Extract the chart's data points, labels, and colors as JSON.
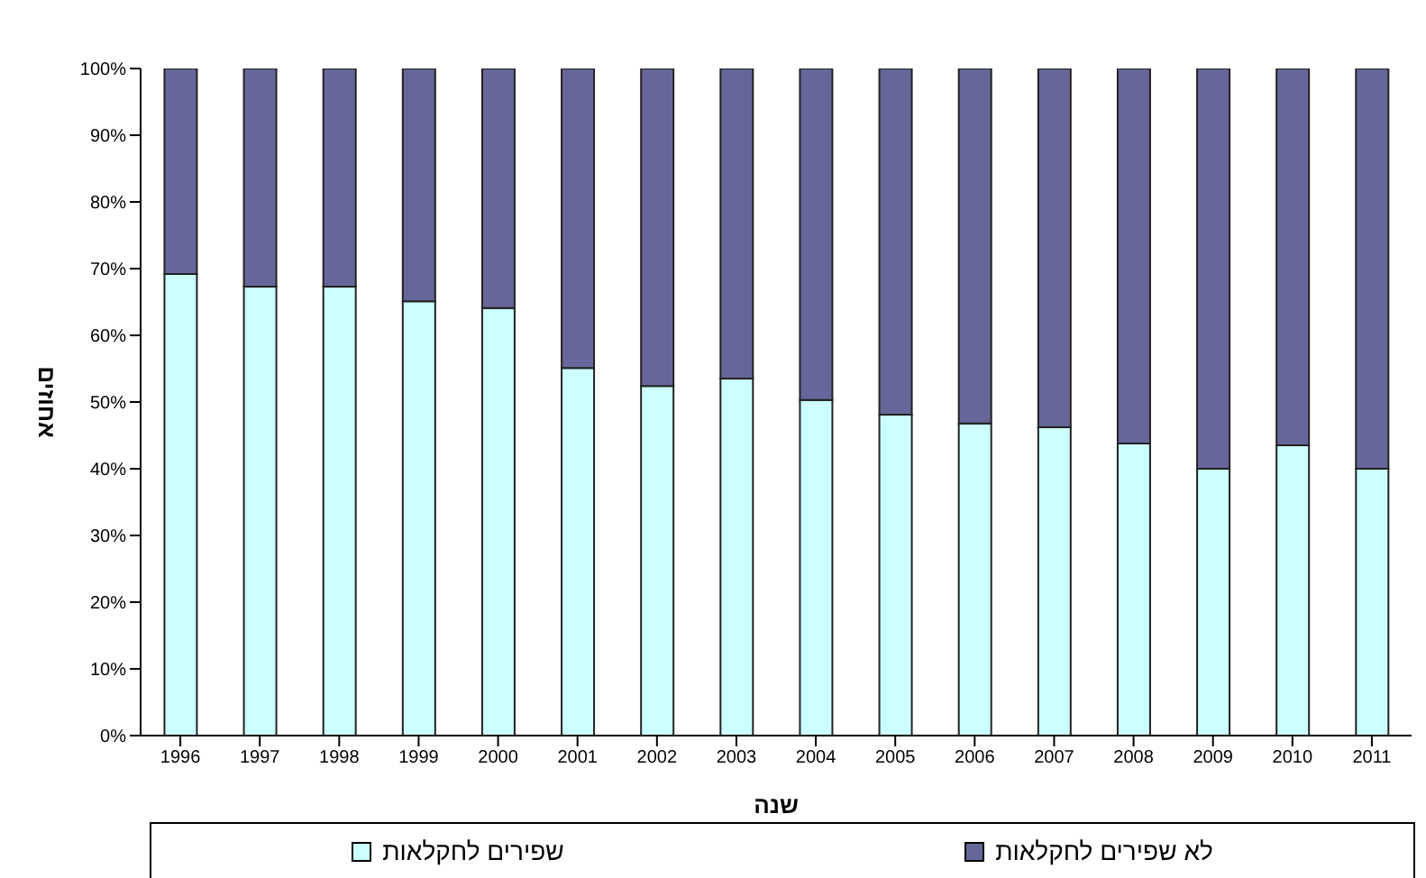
{
  "chart_data": {
    "type": "bar",
    "stacked": true,
    "xlabel": "שנה",
    "ylabel": "אחוזים",
    "categories": [
      "1996",
      "1997",
      "1998",
      "1999",
      "2000",
      "2001",
      "2002",
      "2003",
      "2004",
      "2005",
      "2006",
      "2007",
      "2008",
      "2009",
      "2010",
      "2011"
    ],
    "series": [
      {
        "name": "שפירים לחקלאות",
        "color": "#ccffff",
        "values": [
          69.2,
          67.3,
          67.3,
          65.1,
          64.1,
          55.1,
          52.4,
          53.5,
          50.3,
          48.1,
          46.8,
          46.2,
          43.8,
          40,
          43.5,
          40
        ]
      },
      {
        "name": "לא שפירים לחקלאות",
        "color": "#666699",
        "values": [
          30.8,
          32.7,
          32.7,
          34.9,
          35.9,
          44.9,
          47.6,
          46.5,
          49.7,
          51.9,
          53.2,
          53.8,
          56.2,
          60,
          56.5,
          60
        ]
      }
    ],
    "ylim": [
      0,
      100
    ],
    "yticks": [
      {
        "value": 0,
        "label": "0%"
      },
      {
        "value": 10,
        "label": "10%"
      },
      {
        "value": 20,
        "label": "20%"
      },
      {
        "value": 30,
        "label": "30%"
      },
      {
        "value": 40,
        "label": "40%"
      },
      {
        "value": 50,
        "label": "50%"
      },
      {
        "value": 60,
        "label": "60%"
      },
      {
        "value": 70,
        "label": "70%"
      },
      {
        "value": 80,
        "label": "80%"
      },
      {
        "value": 90,
        "label": "90%"
      },
      {
        "value": 100,
        "label": "100%"
      }
    ],
    "grid": false,
    "legend": "bottom"
  }
}
